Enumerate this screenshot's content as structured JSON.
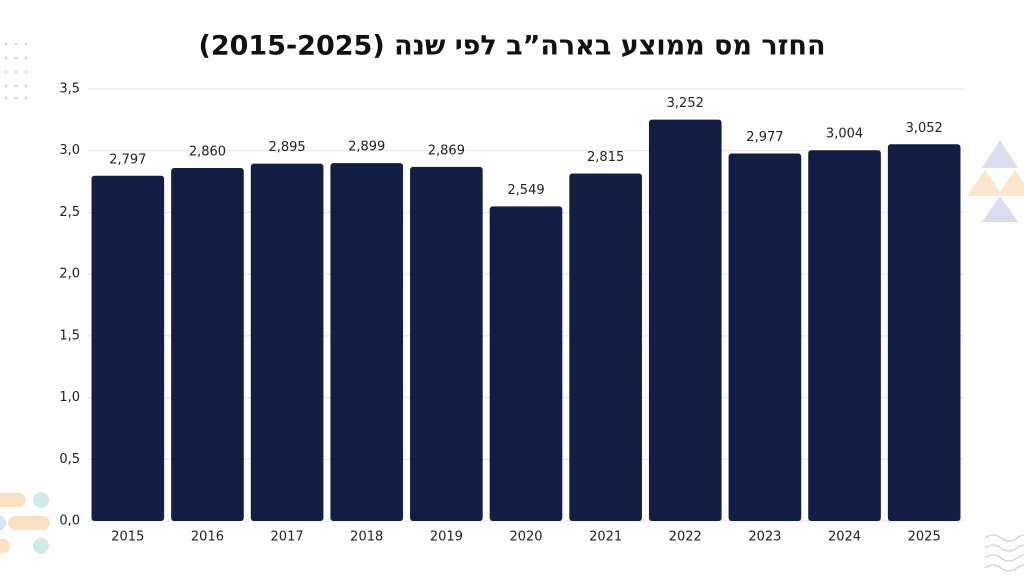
{
  "chart_data": {
    "type": "bar",
    "title": "החזר מס ממוצע בארה”ב לפי שנה (2015-2025)",
    "categories": [
      "2015",
      "2016",
      "2017",
      "2018",
      "2019",
      "2020",
      "2021",
      "2022",
      "2023",
      "2024",
      "2025"
    ],
    "values": [
      2.797,
      2.86,
      2.895,
      2.899,
      2.869,
      2.549,
      2.815,
      3.252,
      2.977,
      3.004,
      3.052
    ],
    "value_labels": [
      "2,797",
      "2,860",
      "2,895",
      "2,899",
      "2,869",
      "2,549",
      "2,815",
      "3,252",
      "2,977",
      "3,004",
      "3,052"
    ],
    "color": "#131e45",
    "ylim": [
      0,
      3.5
    ],
    "yticks": [
      {
        "value": 0,
        "label": "0,0"
      },
      {
        "value": 0.5,
        "label": "0,5"
      },
      {
        "value": 1,
        "label": "1,0"
      },
      {
        "value": 1.5,
        "label": "1,5"
      },
      {
        "value": 2,
        "label": "2,0"
      },
      {
        "value": 2.5,
        "label": "2,5"
      },
      {
        "value": 3,
        "label": "3,0"
      },
      {
        "value": 3.5,
        "label": "3,5"
      }
    ],
    "grid": true
  }
}
